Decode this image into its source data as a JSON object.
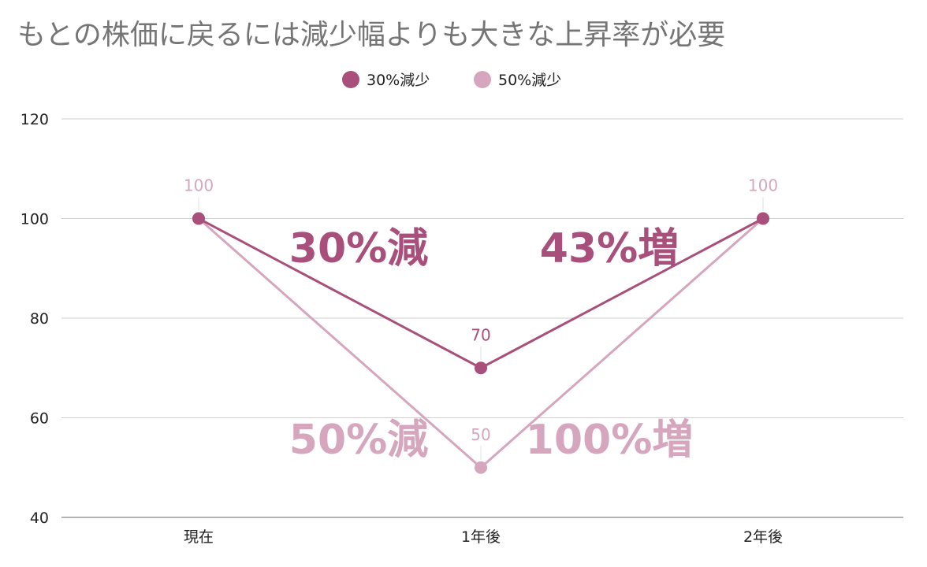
{
  "chart_data": {
    "type": "line",
    "title": "もとの株価に戻るには減少幅よりも大きな上昇率が必要",
    "categories": [
      "現在",
      "1年後",
      "2年後"
    ],
    "series": [
      {
        "name": "30%減少",
        "color": "#a84f7c",
        "values": [
          100,
          70,
          100
        ]
      },
      {
        "name": "50%減少",
        "color": "#d5a6bd",
        "values": [
          100,
          50,
          100
        ]
      }
    ],
    "data_labels": [
      {
        "series": 0,
        "index": 1,
        "text": "70"
      },
      {
        "series": 1,
        "index": 0,
        "text": "100"
      },
      {
        "series": 1,
        "index": 1,
        "text": "50"
      },
      {
        "series": 1,
        "index": 2,
        "text": "100"
      }
    ],
    "ylim": [
      40,
      120
    ],
    "yticks": [
      40,
      60,
      80,
      100,
      120
    ],
    "xlabel": "",
    "ylabel": "",
    "grid": true,
    "legend": "top-center",
    "annotations": [
      {
        "text": "30%減",
        "series": 0
      },
      {
        "text": "43%増",
        "series": 0
      },
      {
        "text": "50%減",
        "series": 1
      },
      {
        "text": "100%増",
        "series": 1
      }
    ]
  }
}
